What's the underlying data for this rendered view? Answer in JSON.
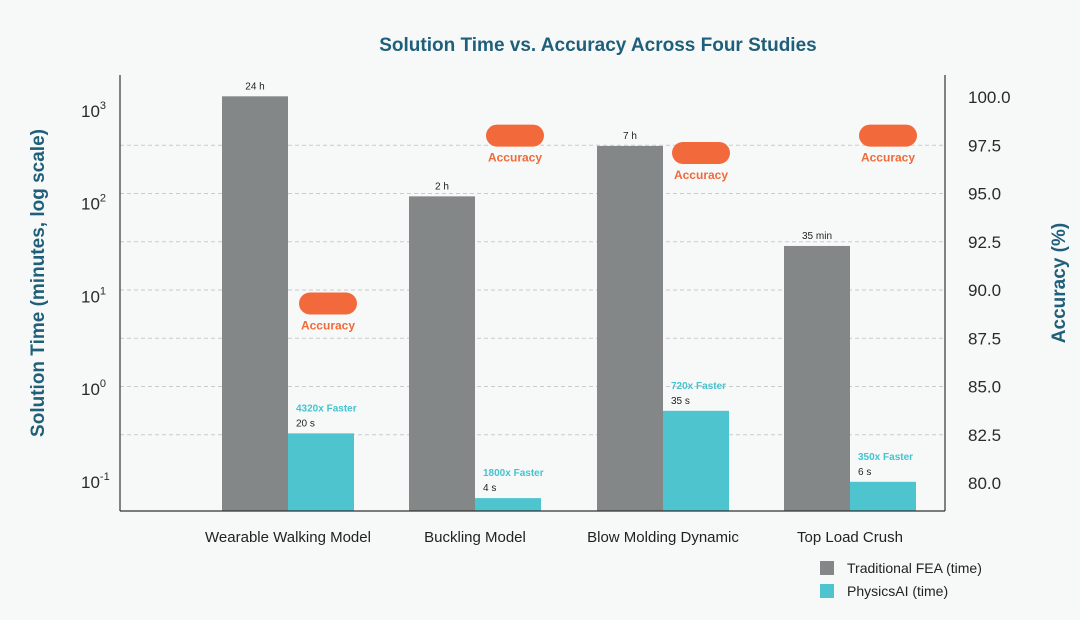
{
  "chart_data": {
    "type": "bar",
    "title": "Solution Time vs. Accuracy Across Four Studies",
    "ylabel": "Solution Time (minutes, log scale)",
    "y2label": "Accuracy (%)",
    "yscale": "log",
    "ylim": [
      0.06,
      2000
    ],
    "y_ticks": [
      {
        "value": 1000,
        "base": "10",
        "exp": "3"
      },
      {
        "value": 100,
        "base": "10",
        "exp": "2"
      },
      {
        "value": 10,
        "base": "10",
        "exp": "1"
      },
      {
        "value": 1,
        "base": "10",
        "exp": "0"
      },
      {
        "value": 0.1,
        "base": "10",
        "exp": "-1"
      }
    ],
    "y2lim": [
      80,
      100
    ],
    "y2_ticks": [
      "100.0",
      "97.5",
      "95.0",
      "92.5",
      "90.0",
      "87.5",
      "85.0",
      "82.5",
      "80.0"
    ],
    "grid": true,
    "legend_position": "bottom-right",
    "categories": [
      "Wearable Walking Model",
      "Buckling Model",
      "Blow Molding Dynamic",
      "Top Load Crush"
    ],
    "series": [
      {
        "name": "Traditional FEA (time)",
        "color": "#848787",
        "values": [
          1440,
          120,
          420,
          35
        ],
        "labels": [
          "24 h",
          "2 h",
          "7 h",
          "35 min"
        ]
      },
      {
        "name": "PhysicsAI (time)",
        "color": "#4ec4cf",
        "values": [
          0.333,
          0.0667,
          0.583,
          0.1
        ],
        "labels": [
          "20 s",
          "4 s",
          "35 s",
          "6 s"
        ],
        "speedup_labels": [
          "4320x Faster",
          "1800x Faster",
          "720x Faster",
          "350x Faster"
        ]
      }
    ],
    "accuracy": {
      "label": "Accuracy",
      "color": "#f26a3b",
      "values": [
        89.3,
        98.0,
        97.1,
        98.0
      ]
    }
  }
}
